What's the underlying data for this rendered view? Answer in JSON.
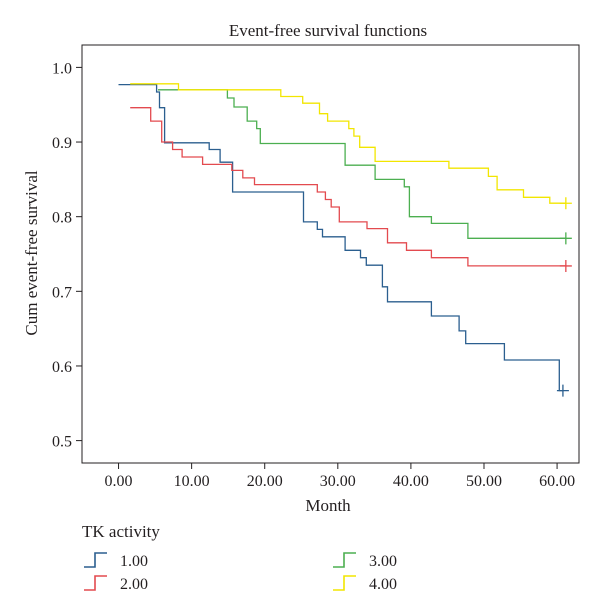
{
  "chart_data": {
    "type": "line",
    "title": "Event-free survival functions",
    "xlabel": "Month",
    "ylabel": "Cum event-free survival",
    "xlim": [
      -5,
      63
    ],
    "ylim": [
      0.47,
      1.03
    ],
    "x_ticks": [
      0,
      10,
      20,
      30,
      40,
      50,
      60
    ],
    "x_tick_labels": [
      "0.00",
      "10.00",
      "20.00",
      "30.00",
      "40.00",
      "50.00",
      "60.00"
    ],
    "y_ticks": [
      0.5,
      0.6,
      0.7,
      0.8,
      0.9,
      1.0
    ],
    "y_tick_labels": [
      "0.5",
      "0.6",
      "0.7",
      "0.8",
      "0.9",
      "1.0"
    ],
    "grid": false,
    "legend": {
      "title": "TK activity",
      "position": "bottom"
    },
    "series": [
      {
        "name": "1.00",
        "color": "#2b5f8f",
        "steps": [
          [
            0,
            0.977
          ],
          [
            5.2,
            0.977
          ],
          [
            5.2,
            0.967
          ],
          [
            5.6,
            0.967
          ],
          [
            5.6,
            0.946
          ],
          [
            6.3,
            0.946
          ],
          [
            6.3,
            0.899
          ],
          [
            12.4,
            0.899
          ],
          [
            12.4,
            0.89
          ],
          [
            13.9,
            0.89
          ],
          [
            13.9,
            0.873
          ],
          [
            15.6,
            0.873
          ],
          [
            15.6,
            0.833
          ],
          [
            25.3,
            0.833
          ],
          [
            25.3,
            0.793
          ],
          [
            27.2,
            0.793
          ],
          [
            27.2,
            0.783
          ],
          [
            27.9,
            0.783
          ],
          [
            27.9,
            0.773
          ],
          [
            31.0,
            0.773
          ],
          [
            31.0,
            0.755
          ],
          [
            33.1,
            0.755
          ],
          [
            33.1,
            0.745
          ],
          [
            33.9,
            0.745
          ],
          [
            33.9,
            0.735
          ],
          [
            36.1,
            0.735
          ],
          [
            36.1,
            0.706
          ],
          [
            36.8,
            0.706
          ],
          [
            36.8,
            0.686
          ],
          [
            42.8,
            0.686
          ],
          [
            42.8,
            0.667
          ],
          [
            46.6,
            0.667
          ],
          [
            46.6,
            0.647
          ],
          [
            47.5,
            0.647
          ],
          [
            47.5,
            0.63
          ],
          [
            52.8,
            0.63
          ],
          [
            52.8,
            0.608
          ],
          [
            60.3,
            0.608
          ],
          [
            60.3,
            0.567
          ],
          [
            60.8,
            0.567
          ]
        ],
        "censored": [
          [
            60.8,
            0.567
          ]
        ]
      },
      {
        "name": "2.00",
        "color": "#e34a4f",
        "steps": [
          [
            1.6,
            0.946
          ],
          [
            4.4,
            0.946
          ],
          [
            4.4,
            0.928
          ],
          [
            5.9,
            0.928
          ],
          [
            5.9,
            0.9
          ],
          [
            7.4,
            0.9
          ],
          [
            7.4,
            0.89
          ],
          [
            8.7,
            0.89
          ],
          [
            8.7,
            0.88
          ],
          [
            11.5,
            0.88
          ],
          [
            11.5,
            0.87
          ],
          [
            15.5,
            0.87
          ],
          [
            15.5,
            0.862
          ],
          [
            17.0,
            0.862
          ],
          [
            17.0,
            0.852
          ],
          [
            18.6,
            0.852
          ],
          [
            18.6,
            0.843
          ],
          [
            27.2,
            0.843
          ],
          [
            27.2,
            0.833
          ],
          [
            28.3,
            0.833
          ],
          [
            28.3,
            0.823
          ],
          [
            29.1,
            0.823
          ],
          [
            29.1,
            0.813
          ],
          [
            30.2,
            0.813
          ],
          [
            30.2,
            0.793
          ],
          [
            34.0,
            0.793
          ],
          [
            34.0,
            0.784
          ],
          [
            36.8,
            0.784
          ],
          [
            36.8,
            0.765
          ],
          [
            39.4,
            0.765
          ],
          [
            39.4,
            0.755
          ],
          [
            42.8,
            0.755
          ],
          [
            42.8,
            0.745
          ],
          [
            47.8,
            0.745
          ],
          [
            47.8,
            0.734
          ],
          [
            61.2,
            0.734
          ]
        ],
        "censored": [
          [
            61.2,
            0.734
          ]
        ]
      },
      {
        "name": "3.00",
        "color": "#4caf50",
        "steps": [
          [
            5.4,
            0.97
          ],
          [
            14.9,
            0.97
          ],
          [
            14.9,
            0.959
          ],
          [
            15.8,
            0.959
          ],
          [
            15.8,
            0.947
          ],
          [
            17.6,
            0.947
          ],
          [
            17.6,
            0.928
          ],
          [
            18.9,
            0.928
          ],
          [
            18.9,
            0.918
          ],
          [
            19.4,
            0.918
          ],
          [
            19.4,
            0.898
          ],
          [
            31.0,
            0.898
          ],
          [
            31.0,
            0.869
          ],
          [
            35.1,
            0.869
          ],
          [
            35.1,
            0.85
          ],
          [
            39.1,
            0.85
          ],
          [
            39.1,
            0.84
          ],
          [
            39.8,
            0.84
          ],
          [
            39.8,
            0.8
          ],
          [
            42.8,
            0.8
          ],
          [
            42.8,
            0.791
          ],
          [
            47.8,
            0.791
          ],
          [
            47.8,
            0.771
          ],
          [
            61.2,
            0.771
          ]
        ],
        "censored": [
          [
            61.2,
            0.771
          ]
        ]
      },
      {
        "name": "4.00",
        "color": "#f2e600",
        "steps": [
          [
            1.6,
            0.978
          ],
          [
            8.2,
            0.978
          ],
          [
            8.2,
            0.97
          ],
          [
            22.2,
            0.97
          ],
          [
            22.2,
            0.961
          ],
          [
            25.2,
            0.961
          ],
          [
            25.2,
            0.952
          ],
          [
            27.5,
            0.952
          ],
          [
            27.5,
            0.938
          ],
          [
            28.6,
            0.938
          ],
          [
            28.6,
            0.928
          ],
          [
            31.5,
            0.928
          ],
          [
            31.5,
            0.918
          ],
          [
            32.2,
            0.918
          ],
          [
            32.2,
            0.908
          ],
          [
            33.0,
            0.908
          ],
          [
            33.0,
            0.893
          ],
          [
            35.1,
            0.893
          ],
          [
            35.1,
            0.874
          ],
          [
            45.2,
            0.874
          ],
          [
            45.2,
            0.865
          ],
          [
            50.6,
            0.865
          ],
          [
            50.6,
            0.854
          ],
          [
            51.8,
            0.854
          ],
          [
            51.8,
            0.836
          ],
          [
            55.4,
            0.836
          ],
          [
            55.4,
            0.826
          ],
          [
            59.0,
            0.826
          ],
          [
            59.0,
            0.818
          ],
          [
            61.2,
            0.818
          ]
        ],
        "censored": [
          [
            61.2,
            0.818
          ]
        ]
      }
    ]
  }
}
